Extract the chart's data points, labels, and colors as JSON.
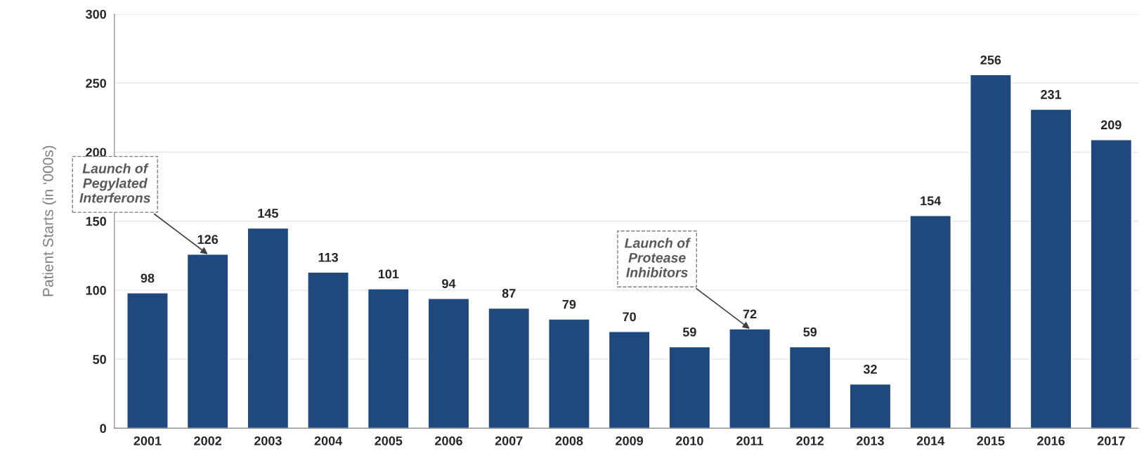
{
  "chart_data": {
    "type": "bar",
    "ylabel": "Patient Starts (in ‘000s)",
    "categories": [
      "2001",
      "2002",
      "2003",
      "2004",
      "2005",
      "2006",
      "2007",
      "2008",
      "2009",
      "2010",
      "2011",
      "2012",
      "2013",
      "2014",
      "2015",
      "2016",
      "2017"
    ],
    "values": [
      98,
      126,
      145,
      113,
      101,
      94,
      87,
      79,
      70,
      59,
      72,
      59,
      32,
      154,
      256,
      231,
      209
    ],
    "color": "#1f497d",
    "ylim": [
      0,
      300
    ],
    "yticks": [
      0,
      50,
      100,
      150,
      200,
      250,
      300
    ],
    "grid": "y",
    "data_labels": true,
    "legend": false,
    "annotations": [
      {
        "text": "Launch of\nPegylated\nInterferons",
        "x": "2002",
        "y": 126
      },
      {
        "text": "Launch of\nProtease\nInhibitors",
        "x": "2011",
        "y": 72
      }
    ]
  }
}
